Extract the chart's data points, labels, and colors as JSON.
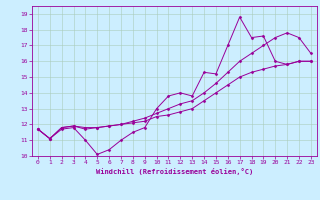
{
  "xlabel": "Windchill (Refroidissement éolien,°C)",
  "bg_color": "#cceeff",
  "line_color": "#990099",
  "grid_color": "#aaccbb",
  "xlim": [
    -0.5,
    23.5
  ],
  "ylim": [
    10,
    19.5
  ],
  "xticks": [
    0,
    1,
    2,
    3,
    4,
    5,
    6,
    7,
    8,
    9,
    10,
    11,
    12,
    13,
    14,
    15,
    16,
    17,
    18,
    19,
    20,
    21,
    22,
    23
  ],
  "yticks": [
    10,
    11,
    12,
    13,
    14,
    15,
    16,
    17,
    18,
    19
  ],
  "series1_x": [
    0,
    1,
    2,
    3,
    4,
    5,
    6,
    7,
    8,
    9,
    10,
    11,
    12,
    13,
    14,
    15,
    16,
    17,
    18,
    19,
    20,
    21,
    22,
    23
  ],
  "series1_y": [
    11.7,
    11.1,
    11.7,
    11.8,
    11.0,
    10.1,
    10.4,
    11.0,
    11.5,
    11.8,
    13.0,
    13.8,
    14.0,
    13.8,
    15.3,
    15.2,
    17.0,
    18.8,
    17.5,
    17.6,
    16.0,
    15.8,
    16.0,
    16.0
  ],
  "series2_x": [
    0,
    1,
    2,
    3,
    4,
    5,
    6,
    7,
    8,
    9,
    10,
    11,
    12,
    13,
    14,
    15,
    16,
    17,
    18,
    19,
    20,
    21,
    22,
    23
  ],
  "series2_y": [
    11.7,
    11.1,
    11.8,
    11.9,
    11.7,
    11.8,
    11.9,
    12.0,
    12.2,
    12.4,
    12.7,
    13.0,
    13.3,
    13.5,
    14.0,
    14.6,
    15.3,
    16.0,
    16.5,
    17.0,
    17.5,
    17.8,
    17.5,
    16.5
  ],
  "series3_x": [
    0,
    1,
    2,
    3,
    4,
    5,
    6,
    7,
    8,
    9,
    10,
    11,
    12,
    13,
    14,
    15,
    16,
    17,
    18,
    19,
    20,
    21,
    22,
    23
  ],
  "series3_y": [
    11.7,
    11.1,
    11.8,
    11.9,
    11.8,
    11.8,
    11.9,
    12.0,
    12.1,
    12.2,
    12.5,
    12.6,
    12.8,
    13.0,
    13.5,
    14.0,
    14.5,
    15.0,
    15.3,
    15.5,
    15.7,
    15.8,
    16.0,
    16.0
  ]
}
